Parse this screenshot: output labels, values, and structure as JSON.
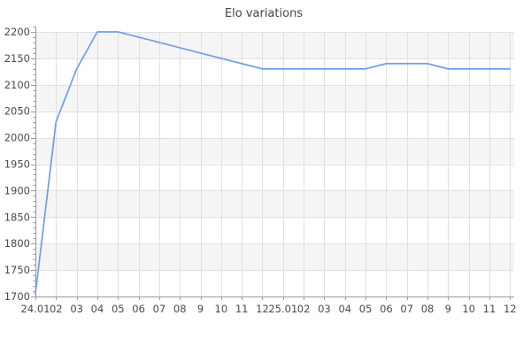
{
  "chart_data": {
    "type": "line",
    "title": "Elo variations",
    "categories": [
      "24.01",
      "02",
      "03",
      "04",
      "05",
      "06",
      "07",
      "08",
      "9",
      "10",
      "11",
      "12",
      "25.01",
      "02",
      "03",
      "04",
      "05",
      "06",
      "07",
      "08",
      "9",
      "10",
      "11",
      "12"
    ],
    "values": [
      1705,
      2030,
      2130,
      2200,
      2200,
      2190,
      2180,
      2170,
      2160,
      2150,
      2140,
      2130,
      2130,
      2130,
      2130,
      2130,
      2130,
      2140,
      2140,
      2140,
      2130,
      2130,
      2130,
      2130
    ],
    "xlabel": "",
    "ylabel": "",
    "ylim": [
      1700,
      2200
    ],
    "ytick_step": 50,
    "ytick_minor_step": 10,
    "ytick_labels": [
      "1700",
      "1750",
      "1800",
      "1850",
      "1900",
      "1950",
      "2000",
      "2050",
      "2100",
      "2150",
      "2200"
    ],
    "grid": true,
    "legend_position": "none",
    "background_bands": "alternating horizontal"
  },
  "colors": {
    "line": "#6d9eeb",
    "band": "#f5f5f5",
    "grid": "#e0e0e0",
    "axis": "#999999",
    "label": "#4a4a4a",
    "title": "#454545"
  }
}
